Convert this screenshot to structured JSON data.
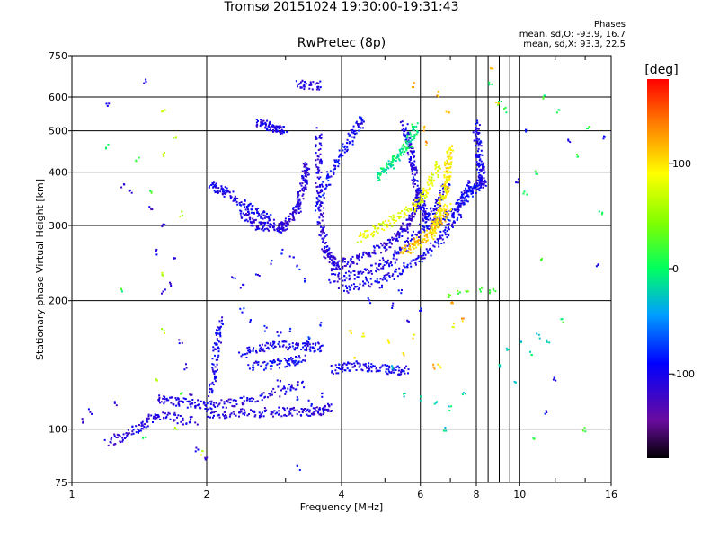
{
  "header": {
    "title_line1": "Tromsø 20151024 19:30:00-19:31:43",
    "title_line2": "RwPretec (8p)",
    "stats_title": "Phases",
    "stats_o": "mean, sd,O:  -93.9, 16.7",
    "stats_x": "mean, sd,X:  93.3, 22.5"
  },
  "colorbar": {
    "label": "[deg]",
    "ticks": [
      {
        "value": 100,
        "label": "100"
      },
      {
        "value": 0,
        "label": "0"
      },
      {
        "value": -100,
        "label": "-100"
      }
    ],
    "range": [
      -180,
      180
    ]
  },
  "chart_data": {
    "type": "scatter",
    "xlabel": "Frequency [MHz]",
    "ylabel": "Stationary phase Virtual Height [km]",
    "xscale": "log",
    "yscale": "log",
    "xlim": [
      1,
      16
    ],
    "ylim": [
      75,
      750
    ],
    "xticks": [
      {
        "v": 1,
        "label": "1"
      },
      {
        "v": 2,
        "label": "2"
      },
      {
        "v": 4,
        "label": "4"
      },
      {
        "v": 6,
        "label": "6"
      },
      {
        "v": 8,
        "label": "8"
      },
      {
        "v": 10,
        "label": "10"
      },
      {
        "v": 16,
        "label": "16"
      }
    ],
    "yticks": [
      {
        "v": 75,
        "label": "75"
      },
      {
        "v": 100,
        "label": "100"
      },
      {
        "v": 200,
        "label": "200"
      },
      {
        "v": 300,
        "label": "300"
      },
      {
        "v": 400,
        "label": "400"
      },
      {
        "v": 500,
        "label": "500"
      },
      {
        "v": 600,
        "label": "600"
      },
      {
        "v": 750,
        "label": "750"
      }
    ],
    "grid": true,
    "grid_x": [
      2,
      4,
      6,
      8,
      10
    ],
    "grid_y": [
      100,
      200,
      300,
      400,
      500,
      600
    ],
    "traces": [
      {
        "points": [
          [
            2.0,
            108
          ],
          [
            2.5,
            109
          ],
          [
            3.0,
            110
          ],
          [
            3.5,
            110
          ],
          [
            3.8,
            112
          ]
        ],
        "phase": -110
      },
      {
        "points": [
          [
            1.55,
            118
          ],
          [
            1.8,
            115
          ],
          [
            2.1,
            114
          ],
          [
            2.6,
            118
          ],
          [
            3.3,
            128
          ]
        ],
        "phase": -105
      },
      {
        "points": [
          [
            2.4,
            150
          ],
          [
            2.8,
            157
          ],
          [
            3.3,
            157
          ],
          [
            3.6,
            155
          ]
        ],
        "phase": -100
      },
      {
        "points": [
          [
            2.5,
            140
          ],
          [
            3.0,
            143
          ],
          [
            3.3,
            146
          ]
        ],
        "phase": -95
      },
      {
        "points": [
          [
            3.8,
            138
          ],
          [
            4.3,
            141
          ],
          [
            5.0,
            138
          ],
          [
            5.6,
            137
          ]
        ],
        "phase": -100
      },
      {
        "points": [
          [
            2.05,
            120
          ],
          [
            2.1,
            150
          ],
          [
            2.15,
            180
          ]
        ],
        "phase": -100
      },
      {
        "points": [
          [
            2.4,
            320
          ],
          [
            2.6,
            300
          ],
          [
            2.9,
            295
          ],
          [
            3.0,
            300
          ],
          [
            3.2,
            330
          ],
          [
            3.3,
            380
          ],
          [
            3.35,
            420
          ]
        ],
        "phase": -110
      },
      {
        "points": [
          [
            2.05,
            370
          ],
          [
            2.2,
            360
          ],
          [
            2.5,
            330
          ],
          [
            2.8,
            310
          ]
        ],
        "phase": -100
      },
      {
        "points": [
          [
            3.2,
            640
          ],
          [
            3.6,
            640
          ]
        ],
        "phase": -110
      },
      {
        "points": [
          [
            3.55,
            500
          ],
          [
            3.55,
            400
          ],
          [
            3.6,
            300
          ],
          [
            3.7,
            260
          ],
          [
            3.9,
            245
          ]
        ],
        "phase": -110
      },
      {
        "points": [
          [
            3.8,
            240
          ],
          [
            4.3,
            250
          ],
          [
            5.0,
            270
          ],
          [
            5.5,
            290
          ],
          [
            5.8,
            320
          ],
          [
            6.0,
            360
          ]
        ],
        "phase": -110
      },
      {
        "points": [
          [
            3.8,
            225
          ],
          [
            4.5,
            233
          ],
          [
            5.2,
            250
          ],
          [
            6.0,
            290
          ],
          [
            6.5,
            330
          ],
          [
            6.9,
            380
          ]
        ],
        "phase": -105
      },
      {
        "points": [
          [
            4.0,
            212
          ],
          [
            5.0,
            225
          ],
          [
            6.0,
            250
          ],
          [
            6.8,
            285
          ],
          [
            7.4,
            330
          ],
          [
            7.7,
            380
          ]
        ],
        "phase": -100
      },
      {
        "points": [
          [
            3.5,
            330
          ],
          [
            3.8,
            400
          ],
          [
            4.2,
            480
          ],
          [
            4.5,
            540
          ]
        ],
        "phase": -95
      },
      {
        "points": [
          [
            5.5,
            520
          ],
          [
            5.7,
            450
          ],
          [
            5.8,
            400
          ],
          [
            6.0,
            340
          ],
          [
            6.2,
            310
          ]
        ],
        "phase": -105
      },
      {
        "points": [
          [
            6.2,
            300
          ],
          [
            7.0,
            320
          ],
          [
            7.8,
            360
          ],
          [
            8.2,
            380
          ]
        ],
        "phase": -95
      },
      {
        "points": [
          [
            8.0,
            520
          ],
          [
            8.1,
            450
          ],
          [
            8.2,
            400
          ],
          [
            8.3,
            370
          ]
        ],
        "phase": -100
      },
      {
        "points": [
          [
            4.4,
            280
          ],
          [
            5.0,
            300
          ],
          [
            5.8,
            330
          ],
          [
            6.2,
            360
          ],
          [
            6.6,
            420
          ]
        ],
        "phase": 80
      },
      {
        "points": [
          [
            6.3,
            280
          ],
          [
            6.6,
            320
          ],
          [
            6.8,
            360
          ],
          [
            6.9,
            400
          ],
          [
            7.0,
            460
          ]
        ],
        "phase": 95
      },
      {
        "points": [
          [
            5.5,
            260
          ],
          [
            6.0,
            275
          ],
          [
            6.5,
            300
          ],
          [
            7.0,
            330
          ]
        ],
        "phase": 110
      },
      {
        "points": [
          [
            4.8,
            390
          ],
          [
            5.2,
            420
          ],
          [
            5.6,
            460
          ],
          [
            5.9,
            520
          ]
        ],
        "phase": -10
      },
      {
        "points": [
          [
            2.6,
            520
          ],
          [
            2.8,
            510
          ],
          [
            3.0,
            500
          ]
        ],
        "phase": -105
      },
      {
        "points": [
          [
            1.2,
            93
          ],
          [
            1.4,
            100
          ],
          [
            1.55,
            108
          ],
          [
            1.9,
            104
          ]
        ],
        "phase": -110
      }
    ],
    "scatter": [
      {
        "points": [
          [
            1.2,
            580
          ],
          [
            1.3,
            370
          ],
          [
            1.35,
            360
          ],
          [
            1.45,
            650
          ],
          [
            1.5,
            330
          ],
          [
            1.55,
            260
          ],
          [
            1.6,
            300
          ],
          [
            1.6,
            210
          ],
          [
            1.65,
            220
          ],
          [
            1.7,
            250
          ],
          [
            1.75,
            160
          ],
          [
            1.8,
            140
          ],
          [
            1.85,
            120
          ],
          [
            1.9,
            90
          ],
          [
            2.0,
            85
          ],
          [
            1.1,
            110
          ],
          [
            1.05,
            105
          ],
          [
            1.25,
            115
          ]
        ],
        "phase": -110
      },
      {
        "points": [
          [
            1.6,
            560
          ],
          [
            1.7,
            480
          ],
          [
            1.6,
            440
          ],
          [
            1.75,
            320
          ],
          [
            1.6,
            230
          ],
          [
            1.6,
            170
          ],
          [
            1.55,
            130
          ],
          [
            1.7,
            100
          ],
          [
            1.95,
            88
          ]
        ],
        "phase": 60
      },
      {
        "points": [
          [
            1.2,
            460
          ],
          [
            1.4,
            430
          ],
          [
            1.5,
            360
          ],
          [
            1.75,
            120
          ],
          [
            1.3,
            210
          ],
          [
            1.45,
            95
          ]
        ],
        "phase": 10
      },
      {
        "points": [
          [
            4.2,
            170
          ],
          [
            4.5,
            165
          ],
          [
            5.1,
            160
          ],
          [
            5.5,
            150
          ],
          [
            5.8,
            165
          ],
          [
            6.6,
            140
          ],
          [
            7.1,
            175
          ],
          [
            4.3,
            145
          ]
        ],
        "phase": 90
      },
      {
        "points": [
          [
            7.0,
            205
          ],
          [
            7.3,
            208
          ],
          [
            7.6,
            210
          ],
          [
            8.2,
            212
          ],
          [
            8.5,
            210
          ],
          [
            8.8,
            212
          ]
        ],
        "phase": 30
      },
      {
        "points": [
          [
            9.4,
            155
          ],
          [
            10.1,
            160
          ],
          [
            10.6,
            150
          ],
          [
            11.0,
            165
          ],
          [
            11.6,
            160
          ],
          [
            9.0,
            140
          ],
          [
            9.8,
            130
          ]
        ],
        "phase": -20
      },
      {
        "points": [
          [
            8.6,
            640
          ],
          [
            9.0,
            580
          ],
          [
            9.3,
            560
          ],
          [
            10.3,
            360
          ],
          [
            10.9,
            400
          ],
          [
            11.3,
            600
          ],
          [
            12.2,
            560
          ],
          [
            13.4,
            440
          ],
          [
            14.2,
            510
          ],
          [
            15.2,
            320
          ],
          [
            11.2,
            250
          ],
          [
            12.5,
            180
          ],
          [
            13.9,
            100
          ],
          [
            10.8,
            96
          ]
        ],
        "phase": 10
      },
      {
        "points": [
          [
            9.9,
            380
          ],
          [
            10.4,
            500
          ],
          [
            12.9,
            470
          ],
          [
            14.9,
            240
          ],
          [
            12.0,
            130
          ],
          [
            11.5,
            110
          ],
          [
            15.5,
            480
          ]
        ],
        "phase": -100
      },
      {
        "points": [
          [
            6.1,
            505
          ],
          [
            6.2,
            470
          ],
          [
            6.6,
            610
          ],
          [
            6.9,
            560
          ],
          [
            7.5,
            180
          ],
          [
            7.1,
            200
          ],
          [
            6.4,
            140
          ],
          [
            8.9,
            580
          ],
          [
            8.7,
            700
          ],
          [
            5.8,
            640
          ]
        ],
        "phase": 120
      },
      {
        "points": [
          [
            4.6,
            200
          ],
          [
            4.9,
            215
          ],
          [
            5.2,
            195
          ],
          [
            5.6,
            180
          ],
          [
            6.0,
            190
          ],
          [
            5.4,
            210
          ]
        ],
        "phase": -100
      },
      {
        "points": [
          [
            2.6,
            230
          ],
          [
            2.8,
            245
          ],
          [
            2.95,
            260
          ],
          [
            3.1,
            255
          ],
          [
            3.2,
            240
          ],
          [
            3.3,
            225
          ],
          [
            2.3,
            225
          ],
          [
            2.4,
            215
          ]
        ],
        "phase": -100
      },
      {
        "points": [
          [
            2.4,
            190
          ],
          [
            2.5,
            180
          ],
          [
            2.7,
            172
          ],
          [
            2.9,
            168
          ],
          [
            3.1,
            170
          ],
          [
            3.4,
            165
          ],
          [
            3.6,
            175
          ]
        ],
        "phase": -90
      },
      {
        "points": [
          [
            2.9,
            130
          ],
          [
            3.1,
            125
          ],
          [
            3.2,
            118
          ],
          [
            3.4,
            115
          ],
          [
            3.6,
            120
          ],
          [
            3.2,
            81
          ]
        ],
        "phase": -95
      },
      {
        "points": [
          [
            5.2,
            140
          ],
          [
            5.5,
            120
          ],
          [
            6.0,
            118
          ],
          [
            6.5,
            115
          ],
          [
            7.0,
            112
          ],
          [
            7.5,
            120
          ],
          [
            6.8,
            100
          ]
        ],
        "phase": -20
      }
    ]
  }
}
